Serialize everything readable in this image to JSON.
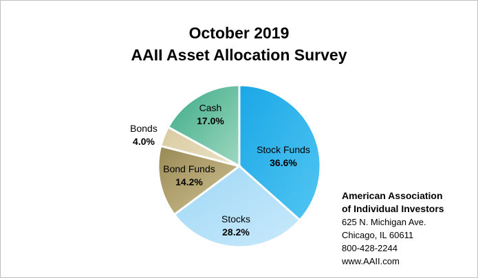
{
  "chart_data": {
    "type": "pie",
    "title": [
      "October 2019",
      "AAII Asset Allocation Survey"
    ],
    "slices": [
      {
        "label": "Stock Funds",
        "value": 36.6,
        "value_label": "36.6%",
        "color_from": "#1aa7e6",
        "color_to": "#52c6f2"
      },
      {
        "label": "Stocks",
        "value": 28.2,
        "value_label": "28.2%",
        "color_from": "#9ed8f6",
        "color_to": "#c9e9fb"
      },
      {
        "label": "Bond Funds",
        "value": 14.2,
        "value_label": "14.2%",
        "color_from": "#9a8a55",
        "color_to": "#cfc193"
      },
      {
        "label": "Bonds",
        "value": 4.0,
        "value_label": "4.0%",
        "color_from": "#d8caa0",
        "color_to": "#ebe2c5"
      },
      {
        "label": "Cash",
        "value": 17.0,
        "value_label": "17.0%",
        "color_from": "#3aaa86",
        "color_to": "#9fd8c0"
      }
    ],
    "start_angle_deg": 0,
    "direction": "clockwise"
  },
  "org": {
    "name_line1": "American Association",
    "name_line2": "of Individual Investors",
    "address": "625 N. Michigan Ave.",
    "city": "Chicago, IL 60611",
    "phone": "800-428-2244",
    "web": "www.AAII.com"
  }
}
